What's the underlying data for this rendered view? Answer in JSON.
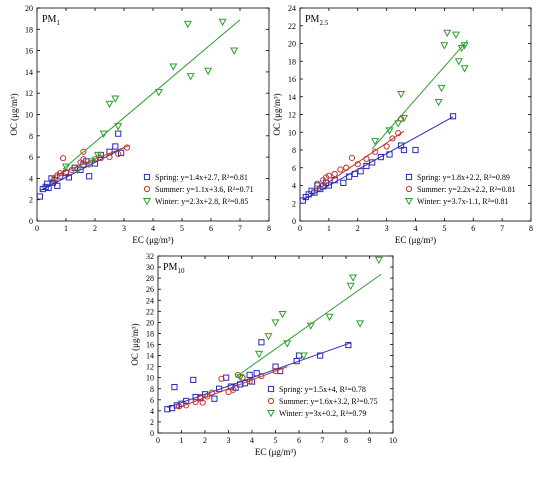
{
  "colors": {
    "spring": "#2a2ab8",
    "summer": "#c0392b",
    "winter": "#2e9e2e"
  },
  "chart_data": [
    {
      "type": "scatter",
      "title": "PM",
      "title_sub": "1",
      "xlabel": "EC (μg/m³)",
      "ylabel": "OC (μg/m³)",
      "xlim": [
        0,
        8
      ],
      "ylim": [
        0,
        20
      ],
      "xticks": [
        "0",
        "1",
        "2",
        "3",
        "4",
        "5",
        "6",
        "7",
        "8"
      ],
      "yticks": [
        "0",
        "2",
        "4",
        "6",
        "8",
        "10",
        "12",
        "14",
        "16",
        "18",
        "20"
      ],
      "xstep": 1,
      "ystep": 2,
      "legend_position": "bottom-right",
      "series": [
        {
          "name": "Spring",
          "legend": "Spring: y=1.4x+2.7, R²=0.81",
          "marker": "square",
          "color_key": "spring",
          "fit": {
            "slope": 1.4,
            "intercept": 2.7,
            "x_range": [
              0.1,
              3.0
            ]
          },
          "points": [
            [
              0.1,
              2.3
            ],
            [
              0.2,
              3.0
            ],
            [
              0.3,
              3.2
            ],
            [
              0.35,
              3.5
            ],
            [
              0.4,
              3.1
            ],
            [
              0.5,
              4.0
            ],
            [
              0.55,
              3.6
            ],
            [
              0.6,
              3.8
            ],
            [
              0.7,
              3.3
            ],
            [
              0.8,
              4.2
            ],
            [
              1.0,
              4.5
            ],
            [
              1.1,
              4.1
            ],
            [
              1.3,
              5.0
            ],
            [
              1.5,
              4.8
            ],
            [
              1.6,
              5.3
            ],
            [
              1.7,
              5.6
            ],
            [
              1.8,
              4.2
            ],
            [
              2.0,
              5.4
            ],
            [
              2.2,
              6.2
            ],
            [
              2.5,
              6.5
            ],
            [
              2.7,
              7.0
            ],
            [
              2.8,
              8.2
            ],
            [
              2.9,
              6.4
            ]
          ]
        },
        {
          "name": "Summer",
          "legend": "Summer: y=1.1x+3.6, R²=0.71",
          "marker": "circle",
          "color_key": "summer",
          "fit": {
            "slope": 1.1,
            "intercept": 3.6,
            "x_range": [
              0.5,
              3.2
            ]
          },
          "points": [
            [
              0.6,
              3.9
            ],
            [
              0.7,
              4.3
            ],
            [
              0.8,
              4.5
            ],
            [
              0.9,
              5.9
            ],
            [
              1.0,
              4.6
            ],
            [
              1.2,
              4.8
            ],
            [
              1.4,
              4.9
            ],
            [
              1.5,
              5.5
            ],
            [
              1.6,
              5.8
            ],
            [
              1.6,
              6.5
            ],
            [
              1.8,
              5.3
            ],
            [
              2.0,
              5.8
            ],
            [
              2.2,
              5.9
            ],
            [
              2.5,
              6.0
            ],
            [
              2.8,
              6.3
            ],
            [
              3.1,
              6.9
            ]
          ]
        },
        {
          "name": "Winter",
          "legend": "Winter: y=2.3x+2.8, R²=0.85",
          "marker": "triangle",
          "color_key": "winter",
          "fit": {
            "slope": 2.3,
            "intercept": 2.8,
            "x_range": [
              0.9,
              7.0
            ]
          },
          "points": [
            [
              1.0,
              5.1
            ],
            [
              1.4,
              4.8
            ],
            [
              1.9,
              5.6
            ],
            [
              2.1,
              6.2
            ],
            [
              2.3,
              8.2
            ],
            [
              2.5,
              11.0
            ],
            [
              2.7,
              11.5
            ],
            [
              2.8,
              8.9
            ],
            [
              4.2,
              12.1
            ],
            [
              4.7,
              14.5
            ],
            [
              5.2,
              18.5
            ],
            [
              5.3,
              13.6
            ],
            [
              5.9,
              14.1
            ],
            [
              6.4,
              18.7
            ],
            [
              6.8,
              16.0
            ]
          ]
        }
      ]
    },
    {
      "type": "scatter",
      "title": "PM",
      "title_sub": "2.5",
      "xlabel": "EC (μg/m³)",
      "ylabel": "OC (μg/m³)",
      "xlim": [
        0,
        8
      ],
      "ylim": [
        0,
        24
      ],
      "xticks": [
        "0",
        "1",
        "2",
        "3",
        "4",
        "5",
        "6",
        "7",
        "8"
      ],
      "yticks": [
        "0",
        "2",
        "4",
        "6",
        "8",
        "10",
        "12",
        "14",
        "16",
        "18",
        "20",
        "22",
        "24"
      ],
      "xstep": 1,
      "ystep": 2,
      "legend_position": "bottom-right",
      "series": [
        {
          "name": "Spring",
          "legend": "Spring: y=1.8x+2.2, R²=0.89",
          "marker": "square",
          "color_key": "spring",
          "fit": {
            "slope": 1.8,
            "intercept": 2.2,
            "x_range": [
              0.1,
              5.3
            ]
          },
          "points": [
            [
              0.1,
              2.3
            ],
            [
              0.2,
              2.7
            ],
            [
              0.3,
              3.0
            ],
            [
              0.4,
              3.4
            ],
            [
              0.5,
              3.2
            ],
            [
              0.6,
              4.0
            ],
            [
              0.7,
              3.6
            ],
            [
              0.8,
              3.9
            ],
            [
              0.9,
              4.3
            ],
            [
              1.0,
              4.0
            ],
            [
              1.2,
              4.6
            ],
            [
              1.5,
              4.3
            ],
            [
              1.7,
              5.0
            ],
            [
              1.9,
              5.3
            ],
            [
              2.1,
              5.6
            ],
            [
              2.3,
              6.2
            ],
            [
              2.5,
              6.6
            ],
            [
              2.8,
              7.2
            ],
            [
              3.1,
              7.5
            ],
            [
              3.5,
              8.5
            ],
            [
              3.6,
              8.0
            ],
            [
              4.0,
              8.0
            ],
            [
              5.3,
              11.8
            ]
          ]
        },
        {
          "name": "Summer",
          "legend": "Summer: y=2.2x+2.2, R²=0.81",
          "marker": "circle",
          "color_key": "summer",
          "fit": {
            "slope": 2.2,
            "intercept": 2.2,
            "x_range": [
              0.5,
              3.6
            ]
          },
          "points": [
            [
              0.6,
              4.2
            ],
            [
              0.8,
              4.6
            ],
            [
              0.9,
              4.9
            ],
            [
              1.0,
              5.1
            ],
            [
              1.2,
              5.3
            ],
            [
              1.4,
              5.8
            ],
            [
              1.6,
              6.0
            ],
            [
              1.8,
              7.1
            ],
            [
              2.0,
              6.4
            ],
            [
              2.3,
              7.0
            ],
            [
              2.6,
              7.8
            ],
            [
              3.0,
              8.4
            ],
            [
              3.2,
              9.3
            ],
            [
              3.4,
              9.9
            ],
            [
              3.5,
              11.5
            ]
          ]
        },
        {
          "name": "Winter",
          "legend": "Winter: y=3.7x-1.1, R²=0.81",
          "marker": "triangle",
          "color_key": "winter",
          "fit": {
            "slope": 3.7,
            "intercept": -1.1,
            "x_range": [
              2.5,
              5.8
            ]
          },
          "points": [
            [
              2.6,
              9.0
            ],
            [
              3.1,
              10.2
            ],
            [
              3.4,
              11.0
            ],
            [
              3.5,
              14.3
            ],
            [
              3.6,
              11.6
            ],
            [
              4.8,
              13.4
            ],
            [
              4.9,
              15.0
            ],
            [
              5.0,
              19.8
            ],
            [
              5.1,
              21.2
            ],
            [
              5.4,
              21.0
            ],
            [
              5.5,
              18.0
            ],
            [
              5.6,
              19.5
            ],
            [
              5.7,
              17.2
            ],
            [
              5.7,
              19.8
            ]
          ]
        }
      ]
    },
    {
      "type": "scatter",
      "title": "PM",
      "title_sub": "10",
      "xlabel": "EC (μg/m³)",
      "ylabel": "OC (μg/m³)",
      "xlim": [
        0,
        10
      ],
      "ylim": [
        0,
        32
      ],
      "xticks": [
        "0",
        "1",
        "2",
        "3",
        "4",
        "5",
        "6",
        "7",
        "8",
        "9",
        "10"
      ],
      "yticks": [
        "0",
        "2",
        "4",
        "6",
        "8",
        "10",
        "12",
        "14",
        "16",
        "18",
        "20",
        "22",
        "24",
        "26",
        "28",
        "30",
        "32"
      ],
      "xstep": 1,
      "ystep": 2,
      "legend_position": "bottom-right",
      "series": [
        {
          "name": "Spring",
          "legend": "Spring: y=1.5x+4, R²=0.78",
          "marker": "square",
          "color_key": "spring",
          "fit": {
            "slope": 1.5,
            "intercept": 4.0,
            "x_range": [
              0.4,
              8.2
            ]
          },
          "points": [
            [
              0.4,
              4.3
            ],
            [
              0.6,
              4.5
            ],
            [
              0.7,
              8.3
            ],
            [
              0.8,
              5.0
            ],
            [
              1.0,
              5.3
            ],
            [
              1.2,
              5.8
            ],
            [
              1.5,
              9.6
            ],
            [
              1.6,
              6.5
            ],
            [
              1.8,
              6.3
            ],
            [
              2.0,
              7.0
            ],
            [
              2.4,
              6.2
            ],
            [
              2.6,
              8.0
            ],
            [
              2.9,
              10.0
            ],
            [
              3.1,
              8.4
            ],
            [
              3.3,
              8.2
            ],
            [
              3.5,
              8.8
            ],
            [
              3.7,
              9.0
            ],
            [
              3.9,
              10.5
            ],
            [
              4.0,
              9.3
            ],
            [
              4.2,
              10.8
            ],
            [
              4.4,
              16.4
            ],
            [
              5.0,
              12.0
            ],
            [
              5.2,
              11.2
            ],
            [
              5.9,
              13.0
            ],
            [
              6.0,
              14.0
            ],
            [
              6.9,
              14.0
            ],
            [
              8.1,
              15.9
            ]
          ]
        },
        {
          "name": "Summer",
          "legend": "Summer: y=1.6x+3.2, R²=0.75",
          "marker": "circle",
          "color_key": "summer",
          "fit": {
            "slope": 1.6,
            "intercept": 3.2,
            "x_range": [
              0.8,
              5.5
            ]
          },
          "points": [
            [
              0.9,
              4.8
            ],
            [
              1.2,
              5.0
            ],
            [
              1.6,
              5.6
            ],
            [
              1.8,
              6.5
            ],
            [
              1.9,
              5.5
            ],
            [
              2.1,
              6.6
            ],
            [
              2.3,
              7.3
            ],
            [
              2.7,
              9.8
            ],
            [
              3.0,
              7.4
            ],
            [
              3.2,
              7.8
            ],
            [
              3.4,
              10.5
            ],
            [
              3.6,
              10.0
            ],
            [
              3.9,
              9.3
            ],
            [
              4.4,
              10.3
            ],
            [
              5.0,
              11.2
            ]
          ]
        },
        {
          "name": "Winter",
          "legend": "Winter: y=3x+0.2, R²=0.79",
          "marker": "triangle",
          "color_key": "winter",
          "fit": {
            "slope": 3.0,
            "intercept": 0.2,
            "x_range": [
              3.3,
              9.5
            ]
          },
          "points": [
            [
              3.5,
              10.1
            ],
            [
              4.3,
              14.3
            ],
            [
              4.7,
              17.5
            ],
            [
              5.0,
              20.0
            ],
            [
              5.3,
              21.5
            ],
            [
              5.5,
              16.2
            ],
            [
              6.2,
              14.0
            ],
            [
              6.5,
              19.4
            ],
            [
              7.3,
              21.0
            ],
            [
              8.2,
              26.6
            ],
            [
              8.3,
              28.1
            ],
            [
              8.6,
              19.8
            ],
            [
              9.4,
              31.3
            ]
          ]
        }
      ]
    }
  ]
}
